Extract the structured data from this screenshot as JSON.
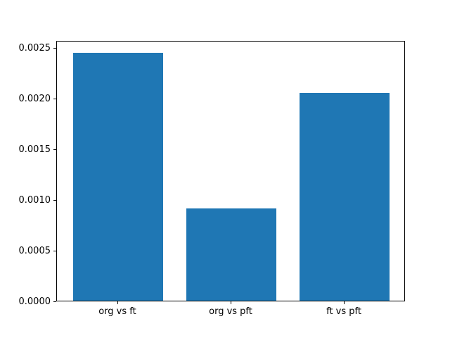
{
  "chart_data": {
    "type": "bar",
    "title": "",
    "xlabel": "",
    "ylabel": "",
    "categories": [
      "org vs ft",
      "org vs pft",
      "ft vs pft"
    ],
    "values": [
      0.00245,
      0.00091,
      0.00205
    ],
    "bar_color": "#1f77b4",
    "ylim": [
      0,
      0.0025725
    ],
    "yticks": [
      0.0,
      0.0005,
      0.001,
      0.0015,
      0.002,
      0.0025
    ],
    "ytick_format_decimals": 4,
    "grid": false,
    "legend": "none",
    "background": "#ffffff",
    "axes_color": "#000000"
  }
}
